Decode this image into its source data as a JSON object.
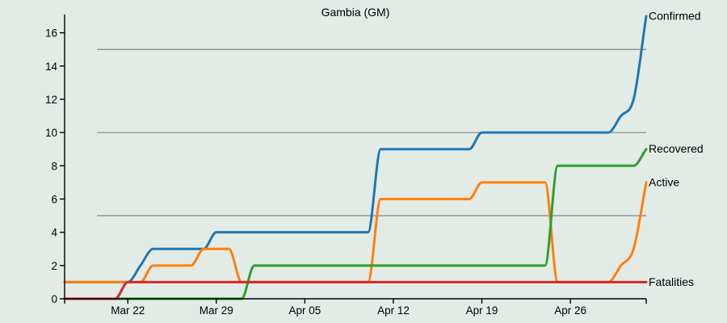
{
  "chart_data": {
    "type": "line",
    "title": "Gambia (GM)",
    "xlabel": "",
    "ylabel": "",
    "x_start": "2020-03-17",
    "x_end": "2020-05-02",
    "xlim": [
      "2020-03-17",
      "2020-05-02"
    ],
    "ylim": [
      0,
      17
    ],
    "x_ticks": [
      {
        "label": "Mar 22",
        "date": "2020-03-22"
      },
      {
        "label": "Mar 29",
        "date": "2020-03-29"
      },
      {
        "label": "Apr 05",
        "date": "2020-04-05"
      },
      {
        "label": "Apr 12",
        "date": "2020-04-12"
      },
      {
        "label": "Apr 19",
        "date": "2020-04-19"
      },
      {
        "label": "Apr 26",
        "date": "2020-04-26"
      }
    ],
    "y_ticks": [
      {
        "label": "0",
        "value": 0
      },
      {
        "label": "2",
        "value": 2
      },
      {
        "label": "4",
        "value": 4
      },
      {
        "label": "6",
        "value": 6
      },
      {
        "label": "8",
        "value": 8
      },
      {
        "label": "10",
        "value": 10
      },
      {
        "label": "12",
        "value": 12
      },
      {
        "label": "14",
        "value": 14
      },
      {
        "label": "16",
        "value": 16
      }
    ],
    "gridlines_y": [
      5,
      10,
      15
    ],
    "x_dates": [
      "2020-03-17",
      "2020-03-18",
      "2020-03-19",
      "2020-03-20",
      "2020-03-21",
      "2020-03-22",
      "2020-03-23",
      "2020-03-24",
      "2020-03-25",
      "2020-03-26",
      "2020-03-27",
      "2020-03-28",
      "2020-03-29",
      "2020-03-30",
      "2020-03-31",
      "2020-04-01",
      "2020-04-02",
      "2020-04-03",
      "2020-04-04",
      "2020-04-05",
      "2020-04-06",
      "2020-04-07",
      "2020-04-08",
      "2020-04-09",
      "2020-04-10",
      "2020-04-11",
      "2020-04-12",
      "2020-04-13",
      "2020-04-14",
      "2020-04-15",
      "2020-04-16",
      "2020-04-17",
      "2020-04-18",
      "2020-04-19",
      "2020-04-20",
      "2020-04-21",
      "2020-04-22",
      "2020-04-23",
      "2020-04-24",
      "2020-04-25",
      "2020-04-26",
      "2020-04-27",
      "2020-04-28",
      "2020-04-29",
      "2020-04-30",
      "2020-05-01",
      "2020-05-02"
    ],
    "series": [
      {
        "name": "Confirmed",
        "color": "#1f77b4",
        "values": [
          1,
          1,
          1,
          1,
          1,
          1,
          2,
          3,
          3,
          3,
          3,
          3,
          4,
          4,
          4,
          4,
          4,
          4,
          4,
          4,
          4,
          4,
          4,
          4,
          4,
          9,
          9,
          9,
          9,
          9,
          9,
          9,
          9,
          10,
          10,
          10,
          10,
          10,
          10,
          10,
          10,
          10,
          10,
          10,
          11,
          12,
          17
        ]
      },
      {
        "name": "Recovered",
        "color": "#2ca02c",
        "values": [
          0,
          0,
          0,
          0,
          0,
          0,
          0,
          0,
          0,
          0,
          0,
          0,
          0,
          0,
          0,
          2,
          2,
          2,
          2,
          2,
          2,
          2,
          2,
          2,
          2,
          2,
          2,
          2,
          2,
          2,
          2,
          2,
          2,
          2,
          2,
          2,
          2,
          2,
          2,
          8,
          8,
          8,
          8,
          8,
          8,
          8,
          9
        ]
      },
      {
        "name": "Active",
        "color": "#ff7f0e",
        "values": [
          1,
          1,
          1,
          1,
          1,
          1,
          1,
          2,
          2,
          2,
          2,
          3,
          3,
          3,
          1,
          1,
          1,
          1,
          1,
          1,
          1,
          1,
          1,
          1,
          1,
          6,
          6,
          6,
          6,
          6,
          6,
          6,
          6,
          7,
          7,
          7,
          7,
          7,
          7,
          1,
          1,
          1,
          1,
          1,
          2,
          3,
          7
        ]
      },
      {
        "name": "Fatalities",
        "color": "#d62728",
        "values": [
          0,
          0,
          0,
          0,
          0,
          1,
          1,
          1,
          1,
          1,
          1,
          1,
          1,
          1,
          1,
          1,
          1,
          1,
          1,
          1,
          1,
          1,
          1,
          1,
          1,
          1,
          1,
          1,
          1,
          1,
          1,
          1,
          1,
          1,
          1,
          1,
          1,
          1,
          1,
          1,
          1,
          1,
          1,
          1,
          1,
          1,
          1
        ]
      }
    ]
  }
}
